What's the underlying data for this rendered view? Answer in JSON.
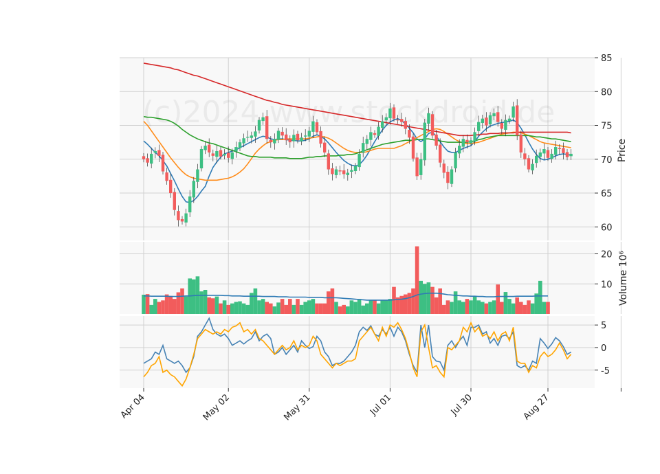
{
  "chart_data": {
    "type": "candlestick",
    "watermark": "(c)2024 www.stockdroid.de",
    "colors": {
      "up": "#3dbf83",
      "down": "#f25c5c",
      "ma_blue": "#2f7bb5",
      "ma_orange": "#ff8c1a",
      "ma_green": "#2ca02c",
      "ma_red": "#d62728",
      "volume_ma": "#2f7bb5",
      "osc_1": "#4682b4",
      "osc_2": "#ffa500",
      "panel_bg": "#f8f8f8",
      "grid": "#d0d0d0"
    },
    "grid": true,
    "x_tick_labels": [
      "Apr 04",
      "May 02",
      "May 31",
      "Jul 01",
      "Jul 30",
      "Aug 27"
    ],
    "price_panel": {
      "ylabel": "Price",
      "ylim": [
        58,
        85
      ],
      "y_ticks": [
        60,
        65,
        70,
        75,
        80,
        85
      ],
      "close": [
        70.0,
        69.5,
        70.8,
        71.2,
        70.5,
        68.2,
        66.8,
        65.0,
        62.5,
        61.0,
        60.8,
        62.0,
        64.5,
        66.8,
        68.5,
        71.5,
        72.0,
        71.0,
        70.5,
        71.2,
        70.4,
        70.8,
        70.2,
        71.0,
        71.8,
        72.5,
        73.1,
        73.3,
        73.5,
        74.1,
        75.8,
        76.2,
        73.0,
        72.5,
        73.0,
        74.2,
        73.5,
        72.8,
        72.5,
        73.6,
        72.8,
        73.2,
        73.5,
        74.2,
        75.6,
        74.0,
        72.3,
        71.0,
        68.5,
        67.8,
        68.5,
        68.2,
        67.8,
        68.0,
        68.4,
        69.0,
        70.8,
        72.4,
        73.0,
        74.0,
        73.6,
        74.8,
        75.6,
        76.2,
        77.5,
        76.0,
        75.8,
        75.5,
        74.5,
        73.2,
        70.1,
        67.5,
        70.0,
        75.4,
        76.8,
        73.5,
        72.0,
        69.5,
        68.0,
        66.5,
        68.5,
        71.0,
        72.0,
        73.0,
        72.5,
        72.8,
        74.0,
        75.5,
        76.0,
        75.0,
        76.5,
        76.8,
        75.5,
        74.5,
        75.8,
        76.0,
        77.8,
        73.5,
        71.0,
        70.0,
        68.5,
        69.3,
        70.5,
        71.0,
        71.5,
        70.2,
        70.8,
        71.8,
        71.5,
        70.9,
        70.3,
        70.8
      ],
      "moving_averages": [
        {
          "values": [
            72.7,
            72.2,
            71.6,
            71.0,
            70.5,
            69.8,
            69.0,
            67.9,
            66.8,
            65.6,
            64.5,
            63.7,
            63.6,
            63.9,
            64.5,
            65.3,
            66.0,
            67.5,
            68.8,
            69.6,
            70.3,
            70.8,
            71.0,
            71.2,
            71.4,
            71.7,
            72.0,
            72.3,
            72.6,
            72.9,
            73.2,
            73.4,
            73.3,
            73.0,
            72.9,
            73.0,
            73.0,
            72.9,
            72.8,
            72.8,
            72.7,
            72.7,
            72.8,
            73.0,
            73.4,
            73.6,
            73.4,
            73.0,
            72.4,
            71.7,
            71.0,
            70.4,
            69.8,
            69.4,
            69.1,
            69.0,
            69.2,
            69.8,
            70.6,
            71.6,
            72.6,
            73.5,
            74.3,
            75.0,
            75.5,
            75.8,
            76.0,
            75.7,
            75.2,
            74.6,
            73.9,
            73.0,
            72.6,
            73.0,
            73.8,
            74.0,
            73.4,
            72.6,
            71.8,
            71.2,
            71.0,
            71.0,
            71.3,
            71.6,
            71.8,
            72.0,
            72.6,
            73.4,
            74.0,
            74.5,
            74.9,
            75.1,
            75.3,
            75.4,
            75.5,
            75.6,
            75.8,
            75.4,
            74.6,
            73.6,
            72.5,
            71.5,
            70.7,
            70.1,
            69.9,
            70.0,
            70.2,
            70.5,
            70.7,
            70.8,
            70.7,
            70.6
          ]
        },
        {
          "values": [
            75.6,
            75.0,
            74.2,
            73.4,
            72.6,
            71.8,
            71.0,
            70.2,
            69.5,
            68.8,
            68.2,
            67.7,
            67.4,
            67.2,
            67.1,
            67.0,
            66.9,
            66.9,
            66.9,
            66.9,
            67.0,
            67.1,
            67.2,
            67.4,
            67.7,
            68.1,
            68.6,
            69.3,
            70.1,
            70.9,
            71.5,
            72.0,
            72.4,
            72.6,
            72.8,
            72.9,
            72.9,
            73.0,
            73.0,
            73.0,
            73.0,
            73.0,
            73.0,
            73.1,
            73.2,
            73.3,
            73.4,
            73.3,
            73.1,
            72.8,
            72.4,
            72.0,
            71.6,
            71.3,
            71.1,
            71.0,
            71.0,
            71.0,
            71.1,
            71.3,
            71.5,
            71.6,
            71.6,
            71.6,
            71.6,
            71.6,
            71.8,
            72.0,
            72.3,
            72.6,
            72.9,
            73.2,
            73.5,
            73.8,
            74.1,
            74.4,
            74.5,
            74.4,
            74.1,
            73.7,
            73.3,
            72.9,
            72.6,
            72.4,
            72.3,
            72.3,
            72.4,
            72.5,
            72.7,
            72.9,
            73.1,
            73.3,
            73.5,
            73.7,
            73.8,
            73.9,
            74.0,
            74.0,
            73.9,
            73.7,
            73.5,
            73.2,
            72.9,
            72.6,
            72.4,
            72.3,
            72.2,
            72.1,
            72.0,
            71.9,
            71.8,
            71.7
          ]
        },
        {
          "values": [
            76.3,
            76.2,
            76.2,
            76.1,
            76.0,
            75.9,
            75.8,
            75.6,
            75.3,
            74.9,
            74.4,
            74.0,
            73.6,
            73.3,
            73.0,
            72.8,
            72.6,
            72.4,
            72.3,
            72.1,
            71.9,
            71.7,
            71.5,
            71.3,
            71.1,
            70.9,
            70.7,
            70.5,
            70.4,
            70.4,
            70.3,
            70.3,
            70.3,
            70.3,
            70.2,
            70.2,
            70.2,
            70.2,
            70.1,
            70.1,
            70.1,
            70.1,
            70.2,
            70.3,
            70.3,
            70.4,
            70.4,
            70.5,
            70.5,
            70.5,
            70.5,
            70.6,
            70.6,
            70.7,
            70.7,
            70.8,
            71.0,
            71.2,
            71.4,
            71.6,
            71.8,
            72.0,
            72.2,
            72.3,
            72.4,
            72.5,
            72.6,
            72.7,
            72.8,
            72.8,
            72.8,
            72.9,
            72.9,
            73.0,
            73.0,
            72.9,
            72.8,
            72.7,
            72.6,
            72.5,
            72.5,
            72.5,
            72.5,
            72.5,
            72.5,
            72.6,
            72.7,
            72.9,
            73.0,
            73.2,
            73.3,
            73.4,
            73.5,
            73.5,
            73.5,
            73.5,
            73.5,
            73.5,
            73.5,
            73.5,
            73.5,
            73.4,
            73.3,
            73.3,
            73.2,
            73.1,
            73.0,
            73.0,
            72.9,
            72.8,
            72.7,
            72.6
          ]
        },
        {
          "values": [
            84.2,
            84.1,
            84.0,
            83.9,
            83.8,
            83.7,
            83.6,
            83.5,
            83.3,
            83.2,
            83.0,
            82.8,
            82.6,
            82.4,
            82.3,
            82.1,
            81.9,
            81.7,
            81.5,
            81.3,
            81.1,
            80.9,
            80.7,
            80.5,
            80.3,
            80.1,
            79.9,
            79.7,
            79.5,
            79.3,
            79.1,
            78.9,
            78.7,
            78.6,
            78.4,
            78.3,
            78.1,
            78.0,
            77.9,
            77.8,
            77.7,
            77.6,
            77.5,
            77.4,
            77.3,
            77.2,
            77.1,
            77.0,
            76.9,
            76.8,
            76.7,
            76.6,
            76.5,
            76.4,
            76.3,
            76.2,
            76.1,
            76.0,
            75.9,
            75.8,
            75.7,
            75.6,
            75.5,
            75.4,
            75.3,
            75.2,
            75.1,
            75.0,
            74.9,
            74.8,
            74.7,
            74.6,
            74.5,
            74.4,
            74.3,
            74.2,
            74.1,
            74.0,
            73.9,
            73.8,
            73.7,
            73.6,
            73.5,
            73.5,
            73.5,
            73.5,
            73.6,
            73.6,
            73.7,
            73.7,
            73.8,
            73.8,
            73.8,
            73.9,
            73.9,
            73.9,
            73.9,
            74.0,
            74.0,
            74.0,
            74.0,
            74.0,
            74.0,
            74.0,
            74.0,
            74.0,
            74.0,
            74.0,
            74.0,
            74.0,
            74.0,
            73.9
          ]
        }
      ]
    },
    "volume_panel": {
      "ylabel": "Volume  10⁶",
      "ylim": [
        0,
        24
      ],
      "y_ticks": [
        10,
        20
      ],
      "values": [
        6.4,
        6.6,
        3.0,
        5.0,
        4.0,
        4.5,
        6.5,
        6.0,
        5.0,
        7.2,
        8.5,
        5.8,
        11.8,
        11.5,
        12.5,
        7.5,
        8.0,
        5.5,
        5.2,
        5.8,
        3.5,
        4.5,
        3.0,
        3.5,
        4.0,
        4.2,
        3.5,
        3.0,
        7.0,
        8.5,
        4.5,
        5.0,
        4.0,
        3.5,
        2.5,
        3.8,
        5.0,
        3.0,
        5.0,
        3.0,
        5.0,
        3.0,
        4.0,
        4.5,
        5.0,
        3.5,
        3.5,
        3.5,
        7.5,
        8.5,
        4.0,
        2.5,
        3.0,
        2.5,
        4.5,
        4.0,
        5.0,
        2.8,
        3.5,
        4.5,
        4.5,
        3.5,
        4.5,
        4.5,
        5.0,
        9.0,
        5.5,
        6.0,
        6.5,
        7.0,
        8.5,
        22.5,
        11.0,
        10.0,
        10.5,
        9.0,
        5.5,
        8.5,
        3.0,
        4.5,
        4.0,
        7.5,
        4.5,
        4.0,
        5.0,
        4.5,
        6.0,
        4.5,
        4.0,
        3.5,
        4.0,
        4.5,
        9.8,
        4.0,
        7.3,
        5.0,
        3.5,
        5.5,
        4.0,
        3.0,
        4.5,
        3.5,
        6.8,
        11.0,
        4.0,
        4.0
      ],
      "moving_average": [
        6.0,
        6.0,
        5.9,
        5.9,
        5.9,
        5.9,
        5.9,
        5.8,
        5.8,
        5.8,
        5.9,
        6.0,
        6.0,
        6.1,
        6.2,
        6.2,
        6.2,
        6.2,
        6.2,
        6.2,
        6.2,
        6.1,
        6.1,
        6.0,
        6.0,
        6.0,
        5.9,
        5.9,
        5.9,
        5.9,
        5.9,
        5.8,
        5.8,
        5.8,
        5.8,
        5.7,
        5.7,
        5.7,
        5.6,
        5.6,
        5.6,
        5.6,
        5.6,
        5.5,
        5.5,
        5.5,
        5.5,
        5.4,
        5.4,
        5.4,
        5.4,
        5.3,
        5.2,
        5.1,
        5.0,
        4.9,
        4.8,
        4.7,
        4.6,
        4.6,
        4.6,
        4.6,
        4.6,
        4.6,
        4.6,
        4.7,
        4.8,
        4.9,
        5.1,
        5.4,
        5.8,
        6.3,
        6.6,
        6.8,
        6.9,
        6.9,
        6.9,
        6.8,
        6.6,
        6.4,
        6.3,
        6.2,
        6.1,
        6.0,
        6.0,
        5.9,
        5.9,
        5.8,
        5.8,
        5.7,
        5.7,
        5.7,
        5.8,
        5.8,
        5.8,
        5.8,
        5.8,
        5.9,
        5.9,
        5.9,
        5.9,
        5.9,
        6.0,
        6.0,
        6.0,
        6.0
      ]
    },
    "oscillator_panel": {
      "ylim": [
        -9,
        7
      ],
      "y_ticks": [
        -5,
        0,
        5
      ],
      "series": [
        {
          "values": [
            -3.5,
            -3.0,
            -2.5,
            -1.0,
            -1.5,
            0.5,
            -2.5,
            -3.0,
            -3.5,
            -3.0,
            -4.0,
            -5.5,
            -4.5,
            -2.0,
            2.5,
            3.5,
            5.0,
            6.5,
            4.0,
            3.0,
            2.5,
            3.0,
            2.0,
            0.5,
            1.0,
            1.5,
            0.8,
            1.5,
            2.0,
            3.5,
            1.5,
            2.5,
            3.0,
            2.0,
            -1.5,
            -1.0,
            0.0,
            -1.5,
            -0.5,
            0.5,
            -1.0,
            1.5,
            0.5,
            -0.2,
            0.2,
            2.5,
            1.5,
            -1.0,
            -2.0,
            -4.0,
            -3.5,
            -3.5,
            -3.0,
            -2.0,
            -1.0,
            0.5,
            3.5,
            4.5,
            3.8,
            4.8,
            3.0,
            2.5,
            4.0,
            3.0,
            4.5,
            2.5,
            4.5,
            3.5,
            1.5,
            -1.5,
            -4.0,
            -5.5,
            5.0,
            0.0,
            5.0,
            -2.0,
            -3.0,
            -3.2,
            -5.0,
            0.5,
            1.5,
            0.0,
            1.5,
            2.5,
            0.5,
            4.5,
            4.5,
            5.0,
            3.0,
            3.5,
            1.0,
            2.0,
            0.5,
            2.5,
            2.8,
            2.0,
            3.5,
            -4.0,
            -4.5,
            -4.0,
            -5.0,
            -3.0,
            -3.5,
            2.0,
            1.0,
            -0.2,
            0.8,
            2.2,
            1.5,
            0.2,
            -1.5,
            -1.0
          ]
        },
        {
          "values": [
            -6.5,
            -5.5,
            -4.0,
            -3.5,
            -2.0,
            -5.5,
            -5.0,
            -6.0,
            -6.5,
            -7.5,
            -8.5,
            -7.0,
            -4.5,
            -1.5,
            2.0,
            3.0,
            4.0,
            3.5,
            3.0,
            3.5,
            3.0,
            4.0,
            3.5,
            4.5,
            4.8,
            5.5,
            3.5,
            4.0,
            3.0,
            4.0,
            2.0,
            1.5,
            0.5,
            -0.5,
            -1.5,
            -0.5,
            0.5,
            -0.5,
            0.0,
            1.5,
            -0.5,
            0.5,
            0.0,
            0.5,
            2.5,
            1.5,
            -1.5,
            -2.5,
            -3.5,
            -4.5,
            -3.5,
            -4.0,
            -3.5,
            -3.0,
            -3.0,
            -2.5,
            1.5,
            2.5,
            3.5,
            4.5,
            3.0,
            1.5,
            4.5,
            2.5,
            5.0,
            4.5,
            5.5,
            4.0,
            2.0,
            -1.0,
            -4.5,
            -6.5,
            3.5,
            5.0,
            0.0,
            -4.5,
            -4.0,
            -5.5,
            -6.5,
            0.0,
            -0.5,
            0.5,
            1.5,
            4.5,
            3.5,
            5.5,
            3.5,
            4.5,
            2.5,
            3.0,
            2.0,
            3.5,
            1.5,
            3.0,
            3.5,
            1.5,
            4.5,
            -3.0,
            -3.5,
            -3.5,
            -5.5,
            -4.0,
            -4.5,
            -2.0,
            -1.0,
            -2.0,
            -1.5,
            -0.5,
            1.0,
            -0.5,
            -2.5,
            -1.5
          ]
        }
      ]
    }
  }
}
